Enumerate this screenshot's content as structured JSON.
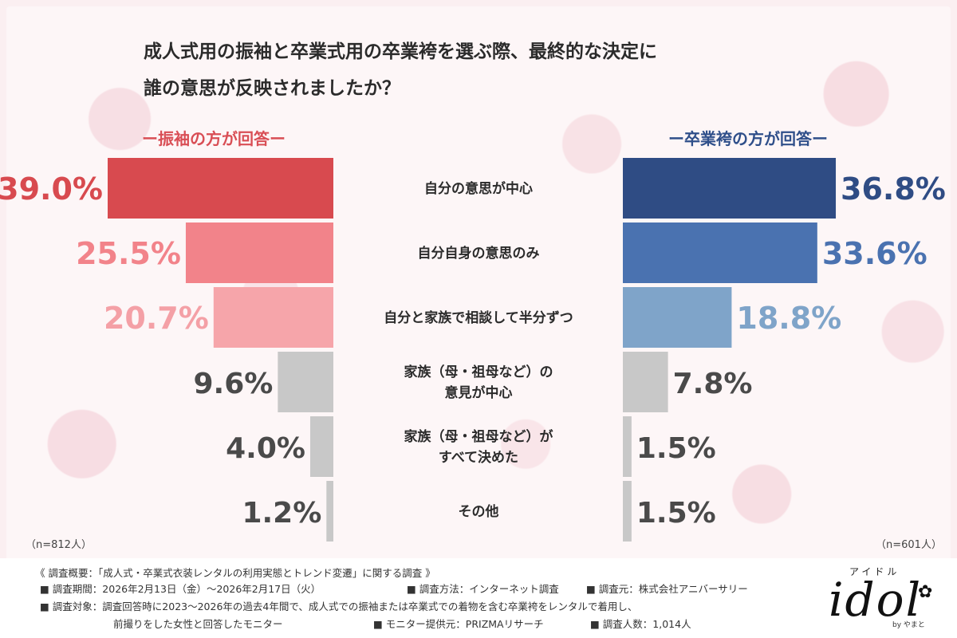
{
  "title": "成人式用の振袖と卒業式用の卒業袴を選ぶ際、最終的な決定に\n誰の意思が反映されましたか？",
  "left_header": "ー振袖の方が回答ー",
  "right_header": "ー卒業袴の方が回答ー",
  "left_n": "（n=812人）",
  "right_n": "（n=601人）",
  "chart_data": {
    "type": "bar",
    "orientation": "horizontal-butterfly",
    "categories": [
      "自分の意思が中心",
      "自分自身の意思のみ",
      "自分と家族で相談して半分ずつ",
      "家族（母・祖母など）の\n意見が中心",
      "家族（母・祖母など）が\nすべて決めた",
      "その他"
    ],
    "series": [
      {
        "name": "振袖の方が回答",
        "values": [
          39.0,
          25.5,
          20.7,
          9.6,
          4.0,
          1.2
        ],
        "labels": [
          "39.0%",
          "25.5%",
          "20.7%",
          "9.6%",
          "4.0%",
          "1.2%"
        ],
        "colors": [
          "#d84a4f",
          "#f2838a",
          "#f6a5aa",
          "#c8c8c8",
          "#c8c8c8",
          "#c8c8c8"
        ],
        "label_colors": [
          "#d84a4f",
          "#f2838a",
          "#f4a0a6",
          "#4a4a4a",
          "#4a4a4a",
          "#4a4a4a"
        ]
      },
      {
        "name": "卒業袴の方が回答",
        "values": [
          36.8,
          33.6,
          18.8,
          7.8,
          1.5,
          1.5
        ],
        "labels": [
          "36.8%",
          "33.6%",
          "18.8%",
          "7.8%",
          "1.5%",
          "1.5%"
        ],
        "colors": [
          "#2f4c84",
          "#4a72b0",
          "#7fa4c9",
          "#c8c8c8",
          "#c8c8c8",
          "#c8c8c8"
        ],
        "label_colors": [
          "#2f4c84",
          "#4a72b0",
          "#7fa4c9",
          "#4a4a4a",
          "#4a4a4a",
          "#4a4a4a"
        ]
      }
    ],
    "unit": "%"
  },
  "footer": {
    "line1": "《 調査概要：「成人式・卒業式衣装レンタルの利用実態とトレンド変遷」に関する調査 》",
    "period": "■ 調査期間：2026年2月13日（金）〜2026年2月17日（火）",
    "method": "■ 調査方法：インターネット調査",
    "source": "■ 調査元：株式会社アニバーサリー",
    "target1": "■ 調査対象：調査回答時に2023〜2026年の過去4年間で、成人式での振袖または卒業式での着物を含む卒業袴をレンタルで着用し、",
    "target2": "前撮りをした女性と回答したモニター",
    "provider": "■ モニター提供元：PRIZMAリサーチ",
    "count": "■ 調査人数：1,014人"
  },
  "logo": {
    "kana": "アイドル",
    "word": "idol",
    "by": "by やまと"
  }
}
